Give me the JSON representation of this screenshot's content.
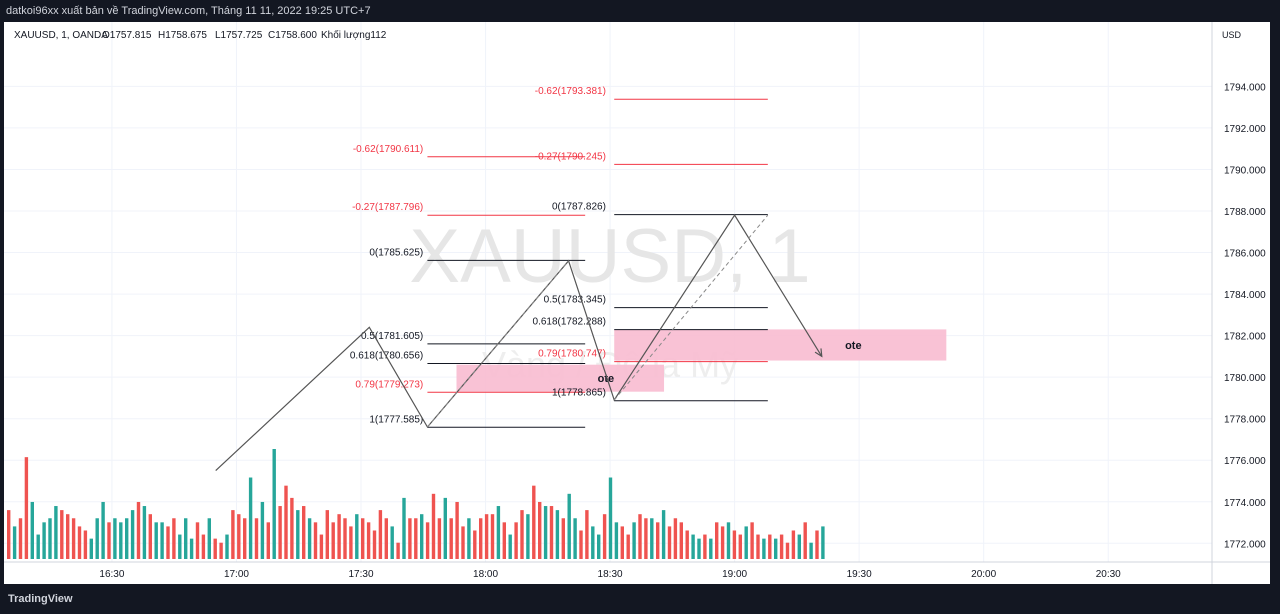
{
  "header": {
    "published_by": "datkoi96xx xuất bản về TradingView.com, Tháng 11 11, 2022 19:25 UTC+7"
  },
  "legend": {
    "symbol": "XAUUSD, 1, OANDA",
    "open": "O1757.815",
    "high": "H1758.675",
    "low": "L1757.725",
    "close": "C1758.600",
    "volume": "Khối lượng112"
  },
  "watermark": {
    "symbol": "XAUUSD, 1",
    "name": "Vàng / Đô la Mỹ"
  },
  "footer": {
    "brand": "TradingView"
  },
  "colors": {
    "up": "#26a69a",
    "down": "#ef5350",
    "fib_red": "#f23645",
    "fib_black": "#131722",
    "zone": "#f8bbd0",
    "grid": "#f0f3fa",
    "leg": "#555555"
  },
  "chart_data": {
    "type": "line",
    "currency": "USD",
    "x_ticks": [
      "16:30",
      "17:00",
      "17:30",
      "18:00",
      "18:30",
      "19:00",
      "19:30",
      "20:00",
      "20:30"
    ],
    "y_ticks": [
      1772.0,
      1774.0,
      1776.0,
      1778.0,
      1780.0,
      1782.0,
      1784.0,
      1786.0,
      1788.0,
      1790.0,
      1792.0,
      1794.0
    ],
    "ylim": [
      1771.1,
      1797.1
    ],
    "zigzag": [
      {
        "t": "16:55",
        "p": 1775.5
      },
      {
        "t": "17:32",
        "p": 1782.4
      },
      {
        "t": "17:46",
        "p": 1777.6
      },
      {
        "t": "18:20",
        "p": 1785.6
      },
      {
        "t": "18:31",
        "p": 1778.9
      },
      {
        "t": "19:00",
        "p": 1787.8
      },
      {
        "t": "19:21",
        "p": 1781.0
      }
    ],
    "dashed": [
      {
        "from": {
          "t": "17:46",
          "p": 1777.6
        },
        "to": {
          "t": "18:20",
          "p": 1785.6
        }
      },
      {
        "from": {
          "t": "18:31",
          "p": 1778.9
        },
        "to": {
          "t": "19:08",
          "p": 1787.8
        }
      }
    ],
    "fib_sets": [
      {
        "x_from": "17:46",
        "x_to": "18:24",
        "label_right": "17:45",
        "levels": [
          {
            "label": "-0.62(1790.611)",
            "value": 1790.611,
            "red": true
          },
          {
            "label": "-0.27(1787.796)",
            "value": 1787.796,
            "red": true
          },
          {
            "label": "0(1785.625)",
            "value": 1785.625,
            "red": false
          },
          {
            "label": "0.5(1781.605)",
            "value": 1781.605,
            "red": false
          },
          {
            "label": "0.618(1780.656)",
            "value": 1780.656,
            "red": false
          },
          {
            "label": "0.79(1779.273)",
            "value": 1779.273,
            "red": true
          },
          {
            "label": "1(1777.585)",
            "value": 1777.585,
            "red": false
          }
        ]
      },
      {
        "x_from": "18:31",
        "x_to": "19:08",
        "label_right": "18:29",
        "levels": [
          {
            "label": "-0.62(1793.381)",
            "value": 1793.381,
            "red": true
          },
          {
            "label": "-0.27(1790.245)",
            "value": 1790.245,
            "red": true
          },
          {
            "label": "0(1787.826)",
            "value": 1787.826,
            "red": false
          },
          {
            "label": "0.5(1783.345)",
            "value": 1783.345,
            "red": false
          },
          {
            "label": "0.618(1782.288)",
            "value": 1782.288,
            "red": false
          },
          {
            "label": "0.79(1780.747)",
            "value": 1780.747,
            "red": true
          },
          {
            "label": "1(1778.865)",
            "value": 1778.865,
            "red": false
          }
        ]
      }
    ],
    "zones": [
      {
        "label": "ote",
        "t_from": "17:53",
        "t_to": "18:43",
        "p_top": 1780.6,
        "p_bottom": 1779.3
      },
      {
        "label": "ote",
        "t_from": "18:31",
        "t_to": "19:51",
        "p_top": 1782.3,
        "p_bottom": 1780.8
      }
    ],
    "volume_bars": [
      {
        "v": 12,
        "up": false
      },
      {
        "v": 8,
        "up": true
      },
      {
        "v": 10,
        "up": false
      },
      {
        "v": 25,
        "up": false
      },
      {
        "v": 14,
        "up": true
      },
      {
        "v": 6,
        "up": true
      },
      {
        "v": 9,
        "up": true
      },
      {
        "v": 10,
        "up": true
      },
      {
        "v": 13,
        "up": true
      },
      {
        "v": 12,
        "up": false
      },
      {
        "v": 11,
        "up": false
      },
      {
        "v": 10,
        "up": false
      },
      {
        "v": 8,
        "up": false
      },
      {
        "v": 7,
        "up": false
      },
      {
        "v": 5,
        "up": true
      },
      {
        "v": 10,
        "up": true
      },
      {
        "v": 14,
        "up": true
      },
      {
        "v": 9,
        "up": false
      },
      {
        "v": 10,
        "up": true
      },
      {
        "v": 9,
        "up": true
      },
      {
        "v": 10,
        "up": true
      },
      {
        "v": 12,
        "up": true
      },
      {
        "v": 14,
        "up": false
      },
      {
        "v": 13,
        "up": true
      },
      {
        "v": 11,
        "up": false
      },
      {
        "v": 9,
        "up": true
      },
      {
        "v": 9,
        "up": true
      },
      {
        "v": 8,
        "up": false
      },
      {
        "v": 10,
        "up": false
      },
      {
        "v": 6,
        "up": true
      },
      {
        "v": 10,
        "up": true
      },
      {
        "v": 5,
        "up": true
      },
      {
        "v": 9,
        "up": false
      },
      {
        "v": 6,
        "up": false
      },
      {
        "v": 10,
        "up": true
      },
      {
        "v": 5,
        "up": false
      },
      {
        "v": 4,
        "up": false
      },
      {
        "v": 6,
        "up": true
      },
      {
        "v": 12,
        "up": false
      },
      {
        "v": 11,
        "up": false
      },
      {
        "v": 10,
        "up": false
      },
      {
        "v": 20,
        "up": true
      },
      {
        "v": 10,
        "up": false
      },
      {
        "v": 14,
        "up": true
      },
      {
        "v": 9,
        "up": false
      },
      {
        "v": 27,
        "up": true
      },
      {
        "v": 13,
        "up": false
      },
      {
        "v": 18,
        "up": false
      },
      {
        "v": 15,
        "up": false
      },
      {
        "v": 12,
        "up": true
      },
      {
        "v": 13,
        "up": false
      },
      {
        "v": 10,
        "up": true
      },
      {
        "v": 9,
        "up": false
      },
      {
        "v": 6,
        "up": false
      },
      {
        "v": 12,
        "up": false
      },
      {
        "v": 9,
        "up": false
      },
      {
        "v": 11,
        "up": false
      },
      {
        "v": 10,
        "up": false
      },
      {
        "v": 8,
        "up": false
      },
      {
        "v": 11,
        "up": true
      },
      {
        "v": 10,
        "up": false
      },
      {
        "v": 9,
        "up": false
      },
      {
        "v": 7,
        "up": false
      },
      {
        "v": 12,
        "up": false
      },
      {
        "v": 10,
        "up": false
      },
      {
        "v": 8,
        "up": true
      },
      {
        "v": 4,
        "up": false
      },
      {
        "v": 15,
        "up": true
      },
      {
        "v": 10,
        "up": false
      },
      {
        "v": 10,
        "up": false
      },
      {
        "v": 11,
        "up": true
      },
      {
        "v": 9,
        "up": false
      },
      {
        "v": 16,
        "up": false
      },
      {
        "v": 10,
        "up": false
      },
      {
        "v": 15,
        "up": true
      },
      {
        "v": 10,
        "up": false
      },
      {
        "v": 14,
        "up": false
      },
      {
        "v": 8,
        "up": false
      },
      {
        "v": 10,
        "up": true
      },
      {
        "v": 7,
        "up": false
      },
      {
        "v": 10,
        "up": false
      },
      {
        "v": 11,
        "up": false
      },
      {
        "v": 11,
        "up": false
      },
      {
        "v": 13,
        "up": true
      },
      {
        "v": 9,
        "up": false
      },
      {
        "v": 6,
        "up": true
      },
      {
        "v": 9,
        "up": false
      },
      {
        "v": 12,
        "up": false
      },
      {
        "v": 11,
        "up": true
      },
      {
        "v": 18,
        "up": false
      },
      {
        "v": 14,
        "up": false
      },
      {
        "v": 13,
        "up": true
      },
      {
        "v": 13,
        "up": false
      },
      {
        "v": 12,
        "up": true
      },
      {
        "v": 10,
        "up": false
      },
      {
        "v": 16,
        "up": true
      },
      {
        "v": 10,
        "up": true
      },
      {
        "v": 7,
        "up": false
      },
      {
        "v": 12,
        "up": false
      },
      {
        "v": 8,
        "up": true
      },
      {
        "v": 6,
        "up": true
      },
      {
        "v": 11,
        "up": false
      },
      {
        "v": 20,
        "up": true
      },
      {
        "v": 9,
        "up": true
      },
      {
        "v": 8,
        "up": false
      },
      {
        "v": 6,
        "up": false
      },
      {
        "v": 9,
        "up": true
      },
      {
        "v": 11,
        "up": false
      },
      {
        "v": 10,
        "up": false
      },
      {
        "v": 10,
        "up": true
      },
      {
        "v": 9,
        "up": false
      },
      {
        "v": 12,
        "up": true
      },
      {
        "v": 8,
        "up": false
      },
      {
        "v": 10,
        "up": false
      },
      {
        "v": 9,
        "up": false
      },
      {
        "v": 7,
        "up": false
      },
      {
        "v": 6,
        "up": true
      },
      {
        "v": 5,
        "up": true
      },
      {
        "v": 6,
        "up": false
      },
      {
        "v": 5,
        "up": true
      },
      {
        "v": 9,
        "up": false
      },
      {
        "v": 8,
        "up": false
      },
      {
        "v": 9,
        "up": true
      },
      {
        "v": 7,
        "up": false
      },
      {
        "v": 6,
        "up": false
      },
      {
        "v": 8,
        "up": true
      },
      {
        "v": 9,
        "up": false
      },
      {
        "v": 6,
        "up": false
      },
      {
        "v": 5,
        "up": true
      },
      {
        "v": 6,
        "up": false
      },
      {
        "v": 5,
        "up": true
      },
      {
        "v": 6,
        "up": false
      },
      {
        "v": 4,
        "up": false
      },
      {
        "v": 7,
        "up": false
      },
      {
        "v": 6,
        "up": true
      },
      {
        "v": 9,
        "up": false
      },
      {
        "v": 4,
        "up": true
      },
      {
        "v": 7,
        "up": false
      },
      {
        "v": 8,
        "up": true
      }
    ]
  }
}
